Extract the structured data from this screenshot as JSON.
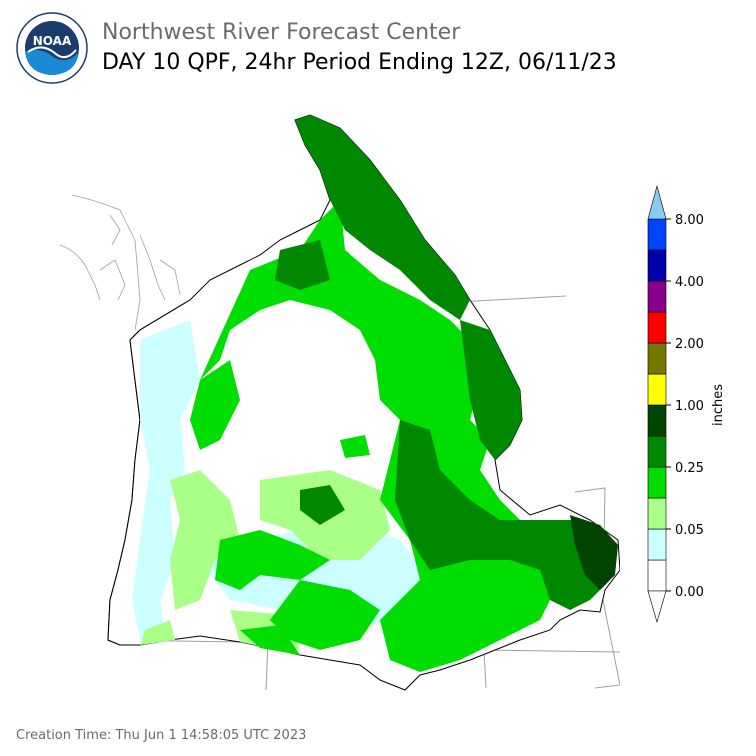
{
  "header": {
    "org_title": "Northwest River Forecast Center",
    "product_title": "DAY 10 QPF, 24hr Period Ending 12Z, 06/11/23"
  },
  "logo": {
    "text": "NOAA",
    "icon": "noaa-logo-icon"
  },
  "legend": {
    "unit_label": "inches",
    "tick_labels": [
      "0.00",
      "0.05",
      "0.25",
      "1.00",
      "2.00",
      "4.00",
      "8.00"
    ],
    "colors": [
      "#ffffff",
      "#ccffff",
      "#aaff88",
      "#00dd00",
      "#008800",
      "#004400",
      "#ffff00",
      "#777700",
      "#ff0000",
      "#880088",
      "#0000aa",
      "#0044ff",
      "#88ccee"
    ]
  },
  "footer": {
    "creation_time": "Creation Time: Thu Jun 1 14:58:05 UTC 2023"
  }
}
